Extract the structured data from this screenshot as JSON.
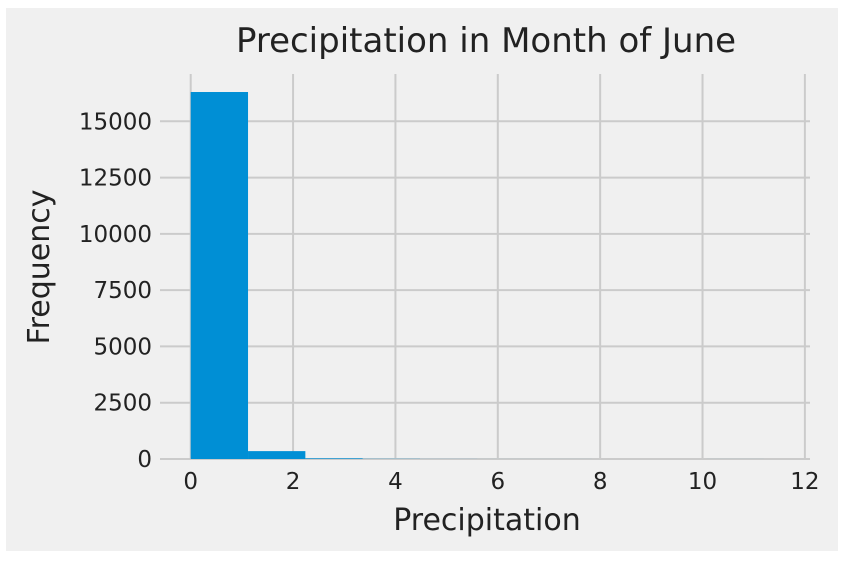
{
  "chart_data": {
    "type": "bar",
    "title": "Precipitation in Month of June",
    "xlabel": "Precipitation",
    "ylabel": "Frequency",
    "xlim": [
      -0.6,
      12.1
    ],
    "ylim": [
      0,
      17100
    ],
    "x_ticks": [
      {
        "value": 0,
        "label": "0"
      },
      {
        "value": 2,
        "label": "2"
      },
      {
        "value": 4,
        "label": "4"
      },
      {
        "value": 6,
        "label": "6"
      },
      {
        "value": 8,
        "label": "8"
      },
      {
        "value": 10,
        "label": "10"
      },
      {
        "value": 12,
        "label": "12"
      }
    ],
    "y_ticks": [
      {
        "value": 0,
        "label": "0"
      },
      {
        "value": 2500,
        "label": "2500"
      },
      {
        "value": 5000,
        "label": "5000"
      },
      {
        "value": 7500,
        "label": "7500"
      },
      {
        "value": 10000,
        "label": "10000"
      },
      {
        "value": 12500,
        "label": "12500"
      },
      {
        "value": 15000,
        "label": "15000"
      }
    ],
    "bins": [
      {
        "x0": 0.0,
        "x1": 1.12,
        "count": 16300
      },
      {
        "x0": 1.12,
        "x1": 2.24,
        "count": 350
      },
      {
        "x0": 2.24,
        "x1": 3.36,
        "count": 30
      },
      {
        "x0": 3.36,
        "x1": 4.48,
        "count": 8
      },
      {
        "x0": 4.48,
        "x1": 5.6,
        "count": 3
      },
      {
        "x0": 5.6,
        "x1": 6.72,
        "count": 1
      },
      {
        "x0": 6.72,
        "x1": 7.84,
        "count": 1
      },
      {
        "x0": 7.84,
        "x1": 8.96,
        "count": 0
      },
      {
        "x0": 8.96,
        "x1": 10.08,
        "count": 0
      },
      {
        "x0": 10.08,
        "x1": 11.2,
        "count": 1
      }
    ],
    "grid": true,
    "colors": {
      "bar": "#008fd5",
      "background": "#f0f0f0",
      "grid": "#cbcbcb",
      "text": "#222222"
    }
  }
}
